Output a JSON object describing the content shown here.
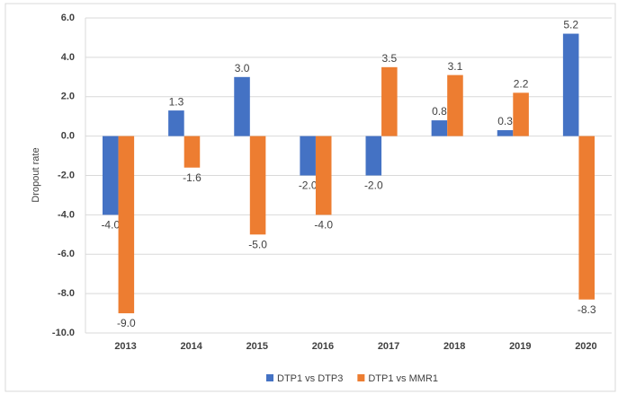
{
  "chart_data": {
    "type": "bar",
    "y_label": "Dropout rate",
    "categories": [
      "2013",
      "2014",
      "2015",
      "2016",
      "2017",
      "2018",
      "2019",
      "2020"
    ],
    "series": [
      {
        "name": "DTP1 vs DTP3",
        "color": "#4472c4",
        "values": [
          -4,
          1.3,
          3,
          -2,
          -2,
          0.8,
          0.3,
          5.2
        ],
        "value_labels": [
          "-4.0",
          "1.3",
          "3.0",
          "-2.0",
          "-2.0",
          "0.8",
          "0.3",
          "5.2"
        ]
      },
      {
        "name": "DTP1 vs MMR1",
        "color": "#ed7d31",
        "values": [
          -9,
          -1.6,
          -5,
          -4,
          3.5,
          3.1,
          2.2,
          -8.3
        ],
        "value_labels": [
          "-9.0",
          "-1.6",
          "-5.0",
          "-4.0",
          "3.5",
          "3.1",
          "2.2",
          "-8.3"
        ]
      }
    ],
    "ylim": [
      -10,
      6
    ],
    "yticks": [
      {
        "value": -10,
        "label": "-10.0"
      },
      {
        "value": -8,
        "label": "-8.0"
      },
      {
        "value": -6,
        "label": "-6.0"
      },
      {
        "value": -4,
        "label": "-4.0"
      },
      {
        "value": -2,
        "label": "-2.0"
      },
      {
        "value": 0,
        "label": "0.0"
      },
      {
        "value": 2,
        "label": "2.0"
      },
      {
        "value": 4,
        "label": "4.0"
      },
      {
        "value": 6,
        "label": "6.0"
      }
    ],
    "grid": true,
    "legend": "bottom"
  }
}
